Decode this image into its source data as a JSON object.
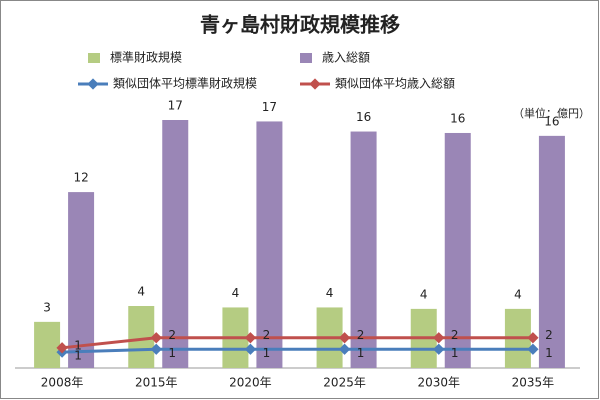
{
  "chart_data": {
    "type": "bar",
    "title": "青ヶ島村財政規模推移",
    "note": "（単位：億円）",
    "categories": [
      "2008年",
      "2015年",
      "2020年",
      "2025年",
      "2030年",
      "2035年"
    ],
    "series": [
      {
        "name": "標準財政規模",
        "type": "bar",
        "color": "#b5cc82",
        "values": [
          3.2,
          4.3,
          4.2,
          4.2,
          4.1,
          4.1
        ],
        "value_labels": [
          "3",
          "4",
          "4",
          "4",
          "4",
          "4"
        ]
      },
      {
        "name": "歳入総額",
        "type": "bar",
        "color": "#9a86b6",
        "values": [
          12.2,
          17.2,
          17.1,
          16.4,
          16.3,
          16.1
        ],
        "value_labels": [
          "12",
          "17",
          "17",
          "16",
          "16",
          "16"
        ]
      },
      {
        "name": "類似団体平均標準財政規模",
        "type": "line",
        "color": "#4a7ebb",
        "values": [
          1.1,
          1.3,
          1.3,
          1.3,
          1.3,
          1.3
        ],
        "value_labels": [
          "1",
          "1",
          "1",
          "1",
          "1",
          "1"
        ]
      },
      {
        "name": "類似団体平均歳入総額",
        "type": "line",
        "color": "#c0504d",
        "values": [
          1.4,
          2.1,
          2.1,
          2.1,
          2.1,
          2.1
        ],
        "value_labels": [
          "1",
          "2",
          "2",
          "2",
          "2",
          "2"
        ]
      }
    ]
  }
}
